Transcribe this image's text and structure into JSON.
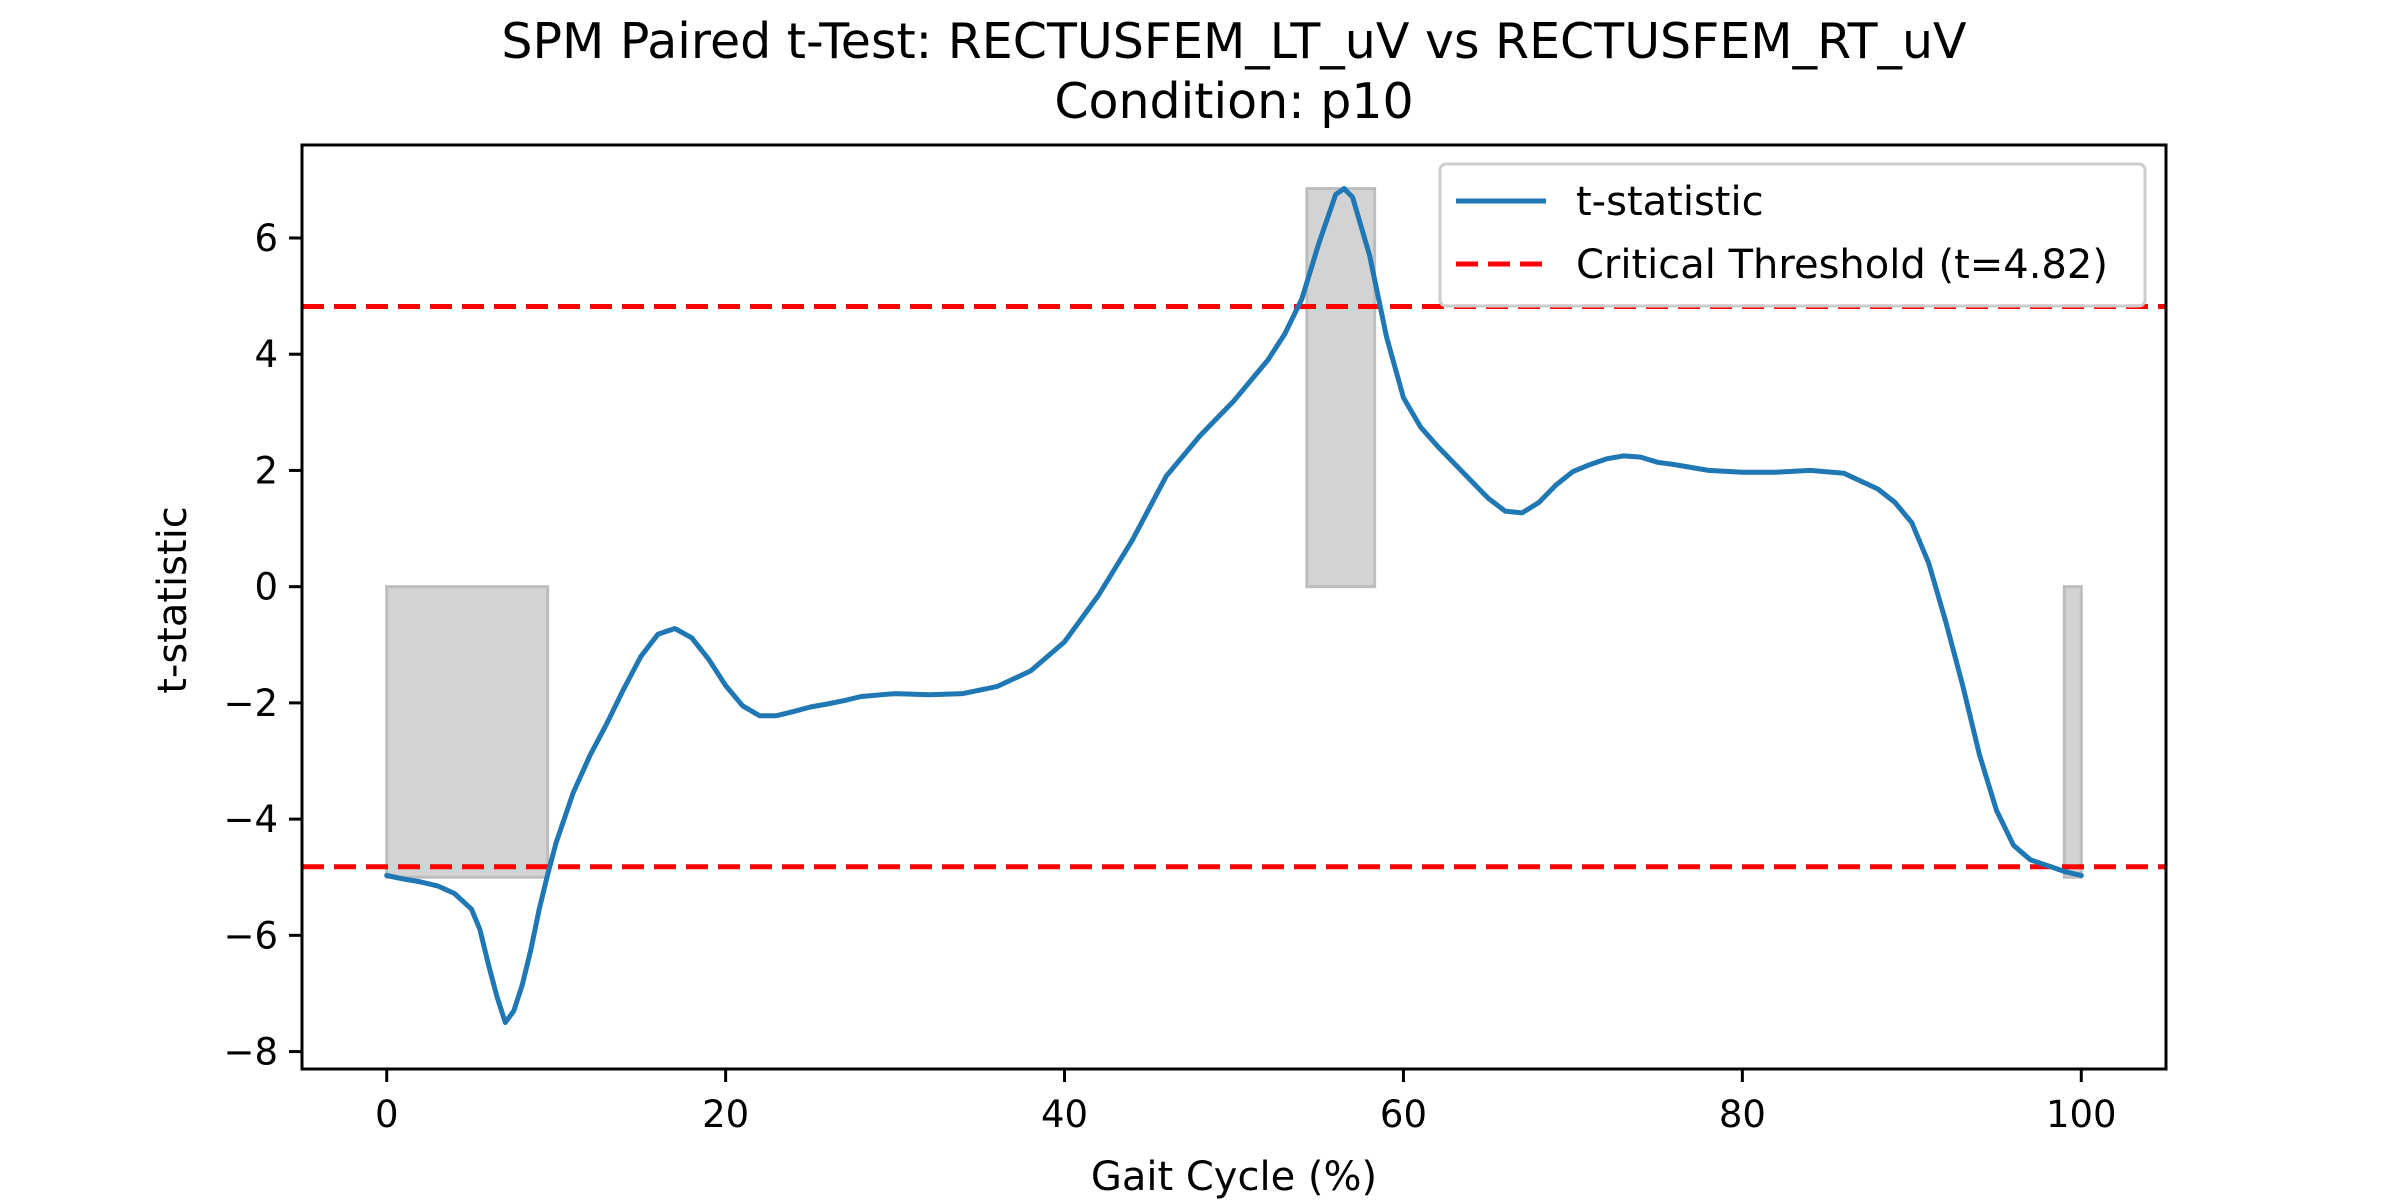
{
  "chart_data": {
    "type": "line",
    "title": "SPM Paired t-Test: RECTUSFEM_LT_uV vs RECTUSFEM_RT_uV",
    "subtitle": "Condition: p10",
    "xlabel": "Gait Cycle (%)",
    "ylabel": "t-statistic",
    "xlim": [
      -5,
      105
    ],
    "ylim": [
      -8.3,
      7.6
    ],
    "xticks": [
      0,
      20,
      40,
      60,
      80,
      100
    ],
    "yticks": [
      -8,
      -6,
      -4,
      -2,
      0,
      2,
      4,
      6
    ],
    "grid": false,
    "legend_position": "top-right",
    "series": [
      {
        "name": "t-statistic",
        "color": "#1f77b4",
        "style": "solid",
        "x": [
          0,
          1,
          2,
          3,
          4,
          5,
          5.5,
          6,
          6.5,
          7,
          7.5,
          8,
          8.5,
          9,
          9.5,
          10,
          11,
          12,
          13,
          14,
          15,
          16,
          17,
          18,
          19,
          20,
          21,
          22,
          23,
          24,
          25,
          26,
          27,
          28,
          30,
          32,
          34,
          36,
          38,
          40,
          42,
          44,
          46,
          48,
          50,
          52,
          53,
          54,
          55,
          56,
          56.5,
          57,
          58,
          59,
          60,
          61,
          62,
          63,
          64,
          65,
          66,
          67,
          68,
          69,
          70,
          71,
          72,
          73,
          74,
          75,
          76,
          78,
          80,
          82,
          84,
          86,
          88,
          89,
          90,
          91,
          92,
          93,
          94,
          95,
          96,
          97,
          98,
          99,
          100
        ],
        "values": [
          -4.97,
          -5.03,
          -5.08,
          -5.15,
          -5.28,
          -5.55,
          -5.9,
          -6.5,
          -7.05,
          -7.5,
          -7.3,
          -6.85,
          -6.25,
          -5.55,
          -4.95,
          -4.4,
          -3.55,
          -2.9,
          -2.35,
          -1.75,
          -1.2,
          -0.82,
          -0.72,
          -0.88,
          -1.25,
          -1.7,
          -2.05,
          -2.22,
          -2.22,
          -2.15,
          -2.07,
          -2.02,
          -1.96,
          -1.89,
          -1.84,
          -1.86,
          -1.84,
          -1.72,
          -1.45,
          -0.95,
          -0.15,
          0.8,
          1.9,
          2.6,
          3.2,
          3.9,
          4.35,
          4.95,
          5.9,
          6.75,
          6.85,
          6.7,
          5.7,
          4.3,
          3.25,
          2.75,
          2.42,
          2.12,
          1.82,
          1.52,
          1.3,
          1.27,
          1.45,
          1.75,
          1.98,
          2.1,
          2.2,
          2.25,
          2.23,
          2.14,
          2.1,
          2.0,
          1.97,
          1.97,
          2.0,
          1.95,
          1.68,
          1.45,
          1.1,
          0.4,
          -0.6,
          -1.7,
          -2.9,
          -3.85,
          -4.45,
          -4.7,
          -4.8,
          -4.9,
          -4.97
        ]
      },
      {
        "name": "Critical Threshold (t=4.82)",
        "color": "#ff0000",
        "style": "dashed",
        "values": [
          4.82,
          -4.82
        ]
      }
    ],
    "clusters": [
      {
        "x_start": 0,
        "x_end": 9.5,
        "fill": "#d3d3d3"
      },
      {
        "x_start": 54.3,
        "x_end": 58.3,
        "fill": "#d3d3d3"
      },
      {
        "x_start": 99,
        "x_end": 100,
        "fill": "#d3d3d3"
      }
    ]
  }
}
